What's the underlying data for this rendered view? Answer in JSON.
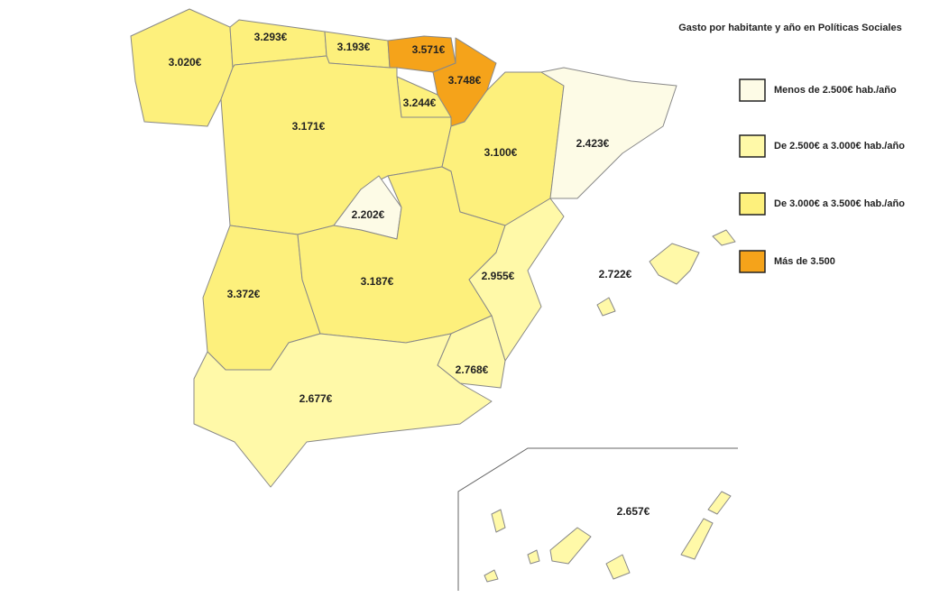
{
  "title": "Gasto por habitante y año en Políticas Sociales",
  "legend": [
    {
      "label": "Menos de 2.500€ hab./año",
      "color": "#fdfbe6"
    },
    {
      "label": "De 2.500€ a 3.000€ hab./año",
      "color": "#fff9a8"
    },
    {
      "label": "De 3.000€ a 3.500€ hab./año",
      "color": "#fdf07c"
    },
    {
      "label": "Más de 3.500",
      "color": "#f5a31a"
    }
  ],
  "regions": [
    {
      "label": "3.020€",
      "color": "#fdf07c"
    },
    {
      "label": "3.293€",
      "color": "#fdf07c"
    },
    {
      "label": "3.193€",
      "color": "#fdf07c"
    },
    {
      "label": "3.571€",
      "color": "#f5a31a"
    },
    {
      "label": "3.748€",
      "color": "#f5a31a"
    },
    {
      "label": "3.244€",
      "color": "#fdf07c"
    },
    {
      "label": "3.171€",
      "color": "#fdf07c"
    },
    {
      "label": "3.100€",
      "color": "#fdf07c"
    },
    {
      "label": "2.423€",
      "color": "#fdfbe6"
    },
    {
      "label": "2.202€",
      "color": "#fdfbe6"
    },
    {
      "label": "3.372€",
      "color": "#fdf07c"
    },
    {
      "label": "3.187€",
      "color": "#fdf07c"
    },
    {
      "label": "2.955€",
      "color": "#fff9a8"
    },
    {
      "label": "2.722€",
      "color": "#fff9a8"
    },
    {
      "label": "2.768€",
      "color": "#fff9a8"
    },
    {
      "label": "2.677€",
      "color": "#fff9a8"
    },
    {
      "label": "2.657€",
      "color": "#fff9a8"
    }
  ]
}
